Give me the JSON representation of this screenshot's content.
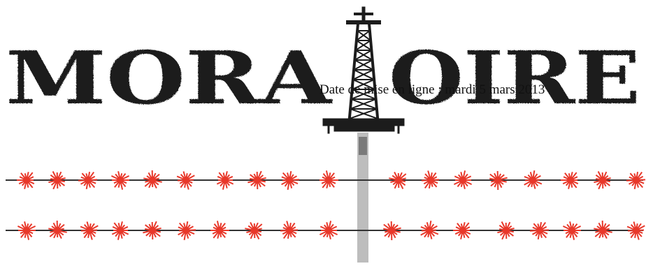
{
  "banner": {
    "logo_text": "MORATOIRE",
    "date_line": "Date de mise en ligne : mardi 5 mars 2013",
    "colors": {
      "ink": "#1c1c1c",
      "flare": "#e8382a",
      "pole": "#bdbdbd",
      "wire": "#333333"
    },
    "icons": [
      "oil-derrick-icon",
      "gas-flare-icon"
    ]
  }
}
